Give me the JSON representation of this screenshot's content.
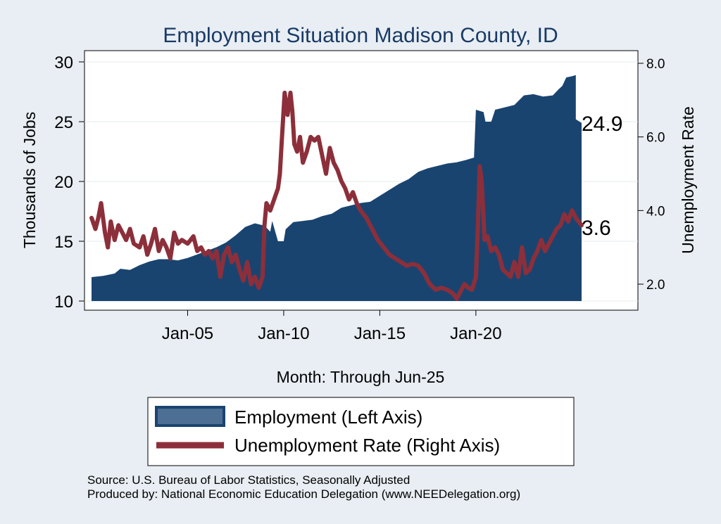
{
  "chart_data": {
    "type": "area+line",
    "title": "Employment Situation Madison  County, ID",
    "xlabel": "Month: Through Jun-25",
    "ylabel_left": "Thousands of Jobs",
    "ylabel_right": "Unemployment Rate",
    "x_range": [
      2000.0,
      2025.5
    ],
    "ylim_left": [
      10,
      30
    ],
    "ylim_right": [
      1.5,
      8.0
    ],
    "x_ticks": [
      {
        "label": "Jan-05",
        "value": 2005
      },
      {
        "label": "Jan-10",
        "value": 2010
      },
      {
        "label": "Jan-15",
        "value": 2015
      },
      {
        "label": "Jan-20",
        "value": 2020
      }
    ],
    "y_ticks_left": [
      {
        "label": "10",
        "value": 10
      },
      {
        "label": "15",
        "value": 15
      },
      {
        "label": "20",
        "value": 20
      },
      {
        "label": "25",
        "value": 25
      },
      {
        "label": "30",
        "value": 30
      }
    ],
    "y_ticks_right": [
      {
        "label": "2.0",
        "value": 2.0
      },
      {
        "label": "4.0",
        "value": 4.0
      },
      {
        "label": "6.0",
        "value": 6.0
      },
      {
        "label": "8.0",
        "value": 8.0
      }
    ],
    "series": [
      {
        "name": "Employment (Left Axis)",
        "axis": "left",
        "style": "area",
        "color": "#1a4470",
        "points": [
          [
            2000.0,
            12.0
          ],
          [
            2000.6,
            12.1
          ],
          [
            2001.2,
            12.3
          ],
          [
            2001.5,
            12.7
          ],
          [
            2002.0,
            12.6
          ],
          [
            2002.5,
            13.0
          ],
          [
            2003.0,
            13.3
          ],
          [
            2003.5,
            13.5
          ],
          [
            2004.0,
            13.5
          ],
          [
            2004.5,
            13.4
          ],
          [
            2005.0,
            13.6
          ],
          [
            2005.5,
            13.9
          ],
          [
            2006.0,
            14.2
          ],
          [
            2006.5,
            14.5
          ],
          [
            2007.0,
            14.9
          ],
          [
            2007.5,
            15.5
          ],
          [
            2008.0,
            16.2
          ],
          [
            2008.5,
            16.5
          ],
          [
            2009.0,
            16.3
          ],
          [
            2009.3,
            15.8
          ],
          [
            2009.4,
            16.7
          ],
          [
            2009.7,
            15.0
          ],
          [
            2010.0,
            15.0
          ],
          [
            2010.1,
            16.0
          ],
          [
            2010.5,
            16.6
          ],
          [
            2011.0,
            16.7
          ],
          [
            2011.5,
            16.8
          ],
          [
            2012.0,
            17.1
          ],
          [
            2012.5,
            17.3
          ],
          [
            2013.0,
            17.8
          ],
          [
            2013.5,
            18.0
          ],
          [
            2014.0,
            18.2
          ],
          [
            2014.5,
            18.3
          ],
          [
            2015.0,
            18.8
          ],
          [
            2015.5,
            19.3
          ],
          [
            2016.0,
            19.8
          ],
          [
            2016.5,
            20.2
          ],
          [
            2017.0,
            20.8
          ],
          [
            2017.5,
            21.1
          ],
          [
            2018.0,
            21.3
          ],
          [
            2018.5,
            21.5
          ],
          [
            2019.0,
            21.6
          ],
          [
            2019.5,
            21.8
          ],
          [
            2019.9,
            22.0
          ],
          [
            2020.0,
            26.0
          ],
          [
            2020.4,
            25.8
          ],
          [
            2020.5,
            25.0
          ],
          [
            2020.8,
            25.0
          ],
          [
            2021.0,
            26.0
          ],
          [
            2021.5,
            26.2
          ],
          [
            2022.0,
            26.4
          ],
          [
            2022.5,
            27.2
          ],
          [
            2023.0,
            27.3
          ],
          [
            2023.5,
            27.1
          ],
          [
            2024.0,
            27.2
          ],
          [
            2024.3,
            27.7
          ],
          [
            2024.5,
            28.0
          ],
          [
            2024.7,
            28.7
          ],
          [
            2025.0,
            28.8
          ],
          [
            2025.2,
            28.9
          ],
          [
            2025.2,
            25.2
          ],
          [
            2025.5,
            24.9
          ]
        ]
      },
      {
        "name": "Unemployment Rate (Right Axis)",
        "axis": "right",
        "style": "line",
        "color": "#8c2f3a",
        "points": [
          [
            2000.0,
            3.8
          ],
          [
            2000.2,
            3.5
          ],
          [
            2000.35,
            3.8
          ],
          [
            2000.5,
            4.2
          ],
          [
            2000.7,
            3.4
          ],
          [
            2000.85,
            3.0
          ],
          [
            2001.0,
            3.7
          ],
          [
            2001.2,
            3.2
          ],
          [
            2001.4,
            3.6
          ],
          [
            2001.6,
            3.4
          ],
          [
            2001.8,
            3.2
          ],
          [
            2002.0,
            3.5
          ],
          [
            2002.2,
            3.1
          ],
          [
            2002.5,
            3.0
          ],
          [
            2002.7,
            3.3
          ],
          [
            2002.9,
            2.8
          ],
          [
            2003.1,
            3.1
          ],
          [
            2003.3,
            3.5
          ],
          [
            2003.5,
            2.9
          ],
          [
            2003.7,
            3.2
          ],
          [
            2003.9,
            3.0
          ],
          [
            2004.1,
            2.7
          ],
          [
            2004.3,
            3.4
          ],
          [
            2004.5,
            3.1
          ],
          [
            2004.7,
            3.2
          ],
          [
            2005.0,
            3.1
          ],
          [
            2005.3,
            3.3
          ],
          [
            2005.5,
            2.9
          ],
          [
            2005.7,
            3.0
          ],
          [
            2005.9,
            2.8
          ],
          [
            2006.1,
            2.9
          ],
          [
            2006.3,
            2.7
          ],
          [
            2006.5,
            2.9
          ],
          [
            2006.7,
            2.2
          ],
          [
            2006.9,
            2.8
          ],
          [
            2007.1,
            3.0
          ],
          [
            2007.3,
            2.6
          ],
          [
            2007.5,
            2.8
          ],
          [
            2007.7,
            2.4
          ],
          [
            2007.9,
            2.1
          ],
          [
            2008.1,
            2.6
          ],
          [
            2008.3,
            2.0
          ],
          [
            2008.5,
            2.2
          ],
          [
            2008.7,
            1.9
          ],
          [
            2008.9,
            2.2
          ],
          [
            2009.0,
            3.6
          ],
          [
            2009.1,
            4.2
          ],
          [
            2009.3,
            4.0
          ],
          [
            2009.5,
            4.3
          ],
          [
            2009.7,
            4.6
          ],
          [
            2009.8,
            5.0
          ],
          [
            2009.9,
            5.9
          ],
          [
            2010.05,
            7.2
          ],
          [
            2010.2,
            6.6
          ],
          [
            2010.35,
            7.2
          ],
          [
            2010.45,
            6.7
          ],
          [
            2010.55,
            5.8
          ],
          [
            2010.7,
            5.6
          ],
          [
            2010.85,
            6.0
          ],
          [
            2011.0,
            5.3
          ],
          [
            2011.2,
            5.6
          ],
          [
            2011.4,
            6.0
          ],
          [
            2011.6,
            5.9
          ],
          [
            2011.8,
            6.0
          ],
          [
            2012.0,
            5.5
          ],
          [
            2012.2,
            5.0
          ],
          [
            2012.4,
            5.7
          ],
          [
            2012.6,
            5.3
          ],
          [
            2012.8,
            5.1
          ],
          [
            2013.0,
            4.8
          ],
          [
            2013.2,
            4.6
          ],
          [
            2013.4,
            4.3
          ],
          [
            2013.6,
            4.5
          ],
          [
            2013.8,
            4.2
          ],
          [
            2014.0,
            4.0
          ],
          [
            2014.3,
            3.8
          ],
          [
            2014.6,
            3.5
          ],
          [
            2014.9,
            3.2
          ],
          [
            2015.2,
            3.0
          ],
          [
            2015.5,
            2.8
          ],
          [
            2015.8,
            2.7
          ],
          [
            2016.1,
            2.6
          ],
          [
            2016.4,
            2.5
          ],
          [
            2016.7,
            2.55
          ],
          [
            2017.0,
            2.5
          ],
          [
            2017.3,
            2.3
          ],
          [
            2017.6,
            2.0
          ],
          [
            2017.9,
            1.85
          ],
          [
            2018.2,
            1.9
          ],
          [
            2018.5,
            1.85
          ],
          [
            2018.8,
            1.75
          ],
          [
            2019.0,
            1.6
          ],
          [
            2019.2,
            1.8
          ],
          [
            2019.4,
            2.0
          ],
          [
            2019.6,
            1.9
          ],
          [
            2019.8,
            1.85
          ],
          [
            2020.0,
            2.2
          ],
          [
            2020.1,
            3.5
          ],
          [
            2020.2,
            5.2
          ],
          [
            2020.3,
            4.8
          ],
          [
            2020.45,
            3.2
          ],
          [
            2020.6,
            3.3
          ],
          [
            2020.8,
            2.9
          ],
          [
            2021.0,
            3.0
          ],
          [
            2021.2,
            2.8
          ],
          [
            2021.4,
            2.4
          ],
          [
            2021.6,
            2.3
          ],
          [
            2021.8,
            2.2
          ],
          [
            2022.0,
            2.6
          ],
          [
            2022.2,
            2.2
          ],
          [
            2022.4,
            3.0
          ],
          [
            2022.6,
            2.3
          ],
          [
            2022.8,
            2.4
          ],
          [
            2023.0,
            2.7
          ],
          [
            2023.2,
            2.9
          ],
          [
            2023.4,
            3.2
          ],
          [
            2023.6,
            2.9
          ],
          [
            2023.8,
            3.1
          ],
          [
            2024.0,
            3.3
          ],
          [
            2024.2,
            3.5
          ],
          [
            2024.4,
            3.6
          ],
          [
            2024.6,
            3.9
          ],
          [
            2024.8,
            3.7
          ],
          [
            2025.0,
            4.0
          ],
          [
            2025.2,
            3.8
          ],
          [
            2025.5,
            3.6
          ]
        ]
      }
    ],
    "end_labels": {
      "employment": "24.9",
      "unemployment": "3.6"
    },
    "legend": {
      "position": "bottom",
      "items": [
        "Employment (Left Axis)",
        "Unemployment Rate (Right Axis)"
      ]
    }
  },
  "source": {
    "line1": "Source: U.S. Bureau of Labor Statistics, Seasonally Adjusted",
    "line2": "Produced by: National Economic Education Delegation (www.NEEDelegation.org)"
  }
}
